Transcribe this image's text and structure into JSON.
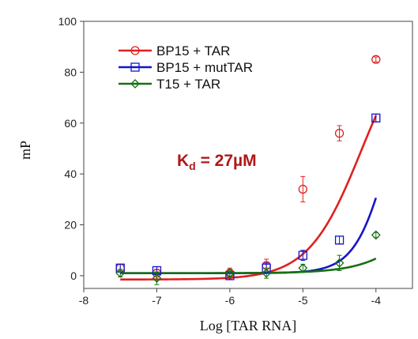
{
  "chart_data": {
    "type": "scatter",
    "xlabel": "Log [TAR RNA]",
    "ylabel": "mP",
    "xlim": [
      -8,
      -3.5
    ],
    "ylim": [
      -5,
      100
    ],
    "xticks": [
      -8,
      -7,
      -6,
      -5,
      -4
    ],
    "yticks": [
      0,
      20,
      40,
      60,
      80,
      100
    ],
    "grid": false,
    "legend_position": "top-left",
    "annotation": {
      "prefix": "K",
      "subscript": "d",
      "rest": " = 27µM"
    },
    "series": [
      {
        "name": "BP15 + TAR",
        "color": "#e02020",
        "marker": "circle",
        "x": [
          -7.5,
          -7,
          -6,
          -5.5,
          -5,
          -4.5,
          -4
        ],
        "y": [
          3,
          1,
          1,
          4,
          34,
          56,
          85
        ],
        "err": [
          1.5,
          1.5,
          2,
          2.5,
          5,
          3,
          1
        ],
        "fit": {
          "bottom": -1.5,
          "top": 100,
          "log_ec50": -4.2,
          "hill": 1.2,
          "x_start": -7.5,
          "x_end": -4
        }
      },
      {
        "name": "BP15 + mutTAR",
        "color": "#1515c8",
        "marker": "square",
        "x": [
          -7.5,
          -7,
          -6,
          -5.5,
          -5,
          -4.5,
          -4
        ],
        "y": [
          3,
          2,
          0,
          3,
          8,
          14,
          62
        ],
        "err": [
          1.5,
          1.5,
          1.5,
          2,
          2,
          1.5,
          1.5
        ],
        "fit": {
          "bottom": 1,
          "top": 100,
          "log_ec50": -3.8,
          "hill": 1.85,
          "x_start": -7.5,
          "x_end": -4
        }
      },
      {
        "name": "T15 + TAR",
        "color": "#157015",
        "marker": "diamond",
        "x": [
          -7.5,
          -7,
          -6,
          -5.5,
          -5,
          -4.5,
          -4
        ],
        "y": [
          1,
          -1,
          1,
          1,
          3,
          5,
          16
        ],
        "err": [
          1.5,
          2.5,
          1.5,
          2,
          1.5,
          3,
          1
        ],
        "fit": {
          "bottom": 1,
          "top": 100,
          "log_ec50": -2.9,
          "hill": 1.1,
          "x_start": -7.5,
          "x_end": -4
        }
      }
    ]
  }
}
